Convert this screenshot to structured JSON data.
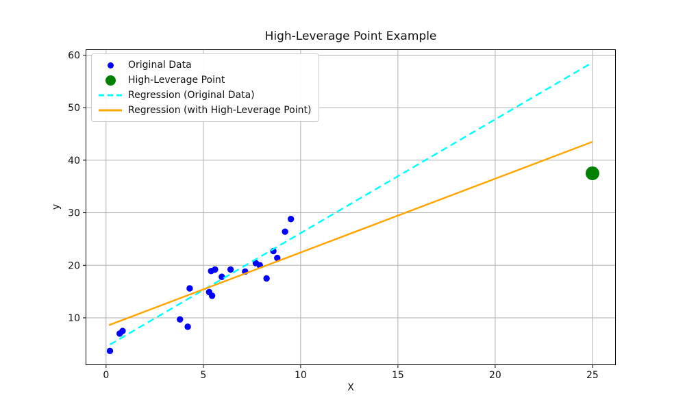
{
  "figure": {
    "title": "High-Leverage Point Example"
  },
  "chart_data": {
    "type": "scatter",
    "title": "High-Leverage Point Example",
    "xlabel": "X",
    "ylabel": "y",
    "xlim": [
      -1.05,
      26.2
    ],
    "ylim": [
      1.0,
      61.1
    ],
    "x_ticks": [
      0,
      5,
      10,
      15,
      20,
      25
    ],
    "y_ticks": [
      10,
      20,
      30,
      40,
      50,
      60
    ],
    "grid": true,
    "grid_color": "#b0b0b0",
    "legend_position": "upper-left",
    "series": [
      {
        "name": "Original Data",
        "kind": "scatter",
        "color": "#0000ff",
        "marker_radius": 4.7,
        "legend_marker_diameter": 9,
        "points": [
          [
            0.2,
            3.7
          ],
          [
            0.7,
            7.0
          ],
          [
            0.85,
            7.5
          ],
          [
            3.8,
            9.7
          ],
          [
            4.2,
            8.3
          ],
          [
            4.3,
            15.6
          ],
          [
            5.3,
            14.9
          ],
          [
            5.45,
            14.2
          ],
          [
            5.4,
            18.9
          ],
          [
            5.6,
            19.2
          ],
          [
            5.95,
            17.8
          ],
          [
            6.4,
            19.2
          ],
          [
            7.15,
            18.8
          ],
          [
            7.7,
            20.4
          ],
          [
            7.9,
            20.0
          ],
          [
            8.25,
            17.5
          ],
          [
            8.6,
            22.7
          ],
          [
            8.8,
            21.4
          ],
          [
            9.2,
            26.4
          ],
          [
            9.5,
            28.8
          ]
        ]
      },
      {
        "name": "High-Leverage Point",
        "kind": "scatter",
        "color": "#008000",
        "marker_radius": 10,
        "legend_marker_diameter": 15,
        "points": [
          [
            25,
            37.5
          ]
        ]
      },
      {
        "name": "Regression (Original Data)",
        "kind": "line",
        "style": "dashed",
        "color": "#00ffff",
        "line_width": 2.5,
        "points": [
          [
            0.2,
            4.9
          ],
          [
            25,
            58.6
          ]
        ]
      },
      {
        "name": "Regression (with High-Leverage Point)",
        "kind": "line",
        "style": "solid",
        "color": "#ffa500",
        "line_width": 2.5,
        "points": [
          [
            0.15,
            8.6
          ],
          [
            25,
            43.5
          ]
        ]
      }
    ]
  }
}
